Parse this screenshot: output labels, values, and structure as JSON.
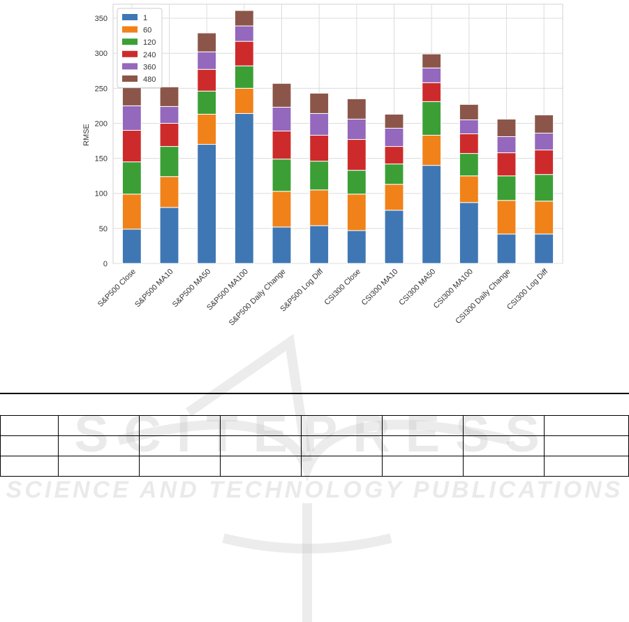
{
  "chart_data": {
    "type": "bar",
    "stacked": true,
    "title": "",
    "xlabel": "",
    "ylabel": "RMSE",
    "ylim": [
      0,
      370
    ],
    "yticks": [
      0,
      50,
      100,
      150,
      200,
      250,
      300,
      350
    ],
    "grid": true,
    "legend_position": "top-left",
    "categories": [
      "S&P500 Close",
      "S&P500 MA10",
      "S&P500 MA50",
      "S&P500 MA100",
      "S&P500 Daily Change",
      "S&P500 Log Diff",
      "CSI300 Close",
      "CSI300 MA10",
      "CSI300 MA50",
      "CSI300 MA100",
      "CSI300 Daily Change",
      "CSI300 Log Diff"
    ],
    "series": [
      {
        "name": "1",
        "color": "#3f77b4",
        "values": [
          49,
          80,
          170,
          214,
          52,
          54,
          47,
          76,
          140,
          87,
          42,
          42
        ]
      },
      {
        "name": "60",
        "color": "#f08219",
        "values": [
          50,
          44,
          43,
          36,
          51,
          51,
          52,
          37,
          43,
          38,
          48,
          47
        ]
      },
      {
        "name": "120",
        "color": "#3b9f36",
        "values": [
          46,
          43,
          33,
          32,
          46,
          41,
          34,
          29,
          48,
          32,
          35,
          38
        ]
      },
      {
        "name": "240",
        "color": "#cd2b2b",
        "values": [
          45,
          33,
          31,
          35,
          40,
          37,
          44,
          25,
          27,
          28,
          33,
          35
        ]
      },
      {
        "name": "360",
        "color": "#9368bd",
        "values": [
          35,
          24,
          25,
          22,
          34,
          31,
          29,
          26,
          21,
          20,
          23,
          24
        ]
      },
      {
        "name": "480",
        "color": "#8b5649",
        "values": [
          33,
          28,
          27,
          22,
          34,
          29,
          29,
          20,
          20,
          22,
          25,
          26
        ]
      }
    ]
  },
  "page": {
    "watermark_big": "SCITEPRESS",
    "watermark_small": "SCIENCE AND TECHNOLOGY PUBLICATIONS"
  }
}
